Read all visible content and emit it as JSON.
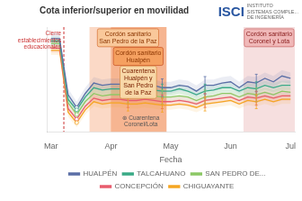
{
  "chart_data": {
    "type": "line",
    "title": "Cota inferior/superior en movilidad",
    "x_label": "Fecha",
    "categories": [
      "Mar",
      null,
      null,
      null,
      null,
      null,
      null,
      "Apr",
      null,
      null,
      null,
      null,
      null,
      null,
      "May",
      null,
      null,
      null,
      null,
      null,
      null,
      "Jun",
      null,
      null,
      null,
      null,
      null,
      null,
      "Jul"
    ],
    "ylim": [
      0.22,
      1.12
    ],
    "yticks": [],
    "tick_labels": "x",
    "grid": false,
    "legend": "bottom",
    "series": [
      {
        "name": "HUALPÉN",
        "color": "#5b6fa6",
        "values": [
          1.02,
          1.02,
          0.54,
          0.43,
          0.55,
          0.64,
          0.62,
          0.63,
          0.63,
          0.62,
          0.62,
          0.62,
          0.62,
          0.6,
          0.6,
          0.62,
          0.61,
          0.57,
          0.62,
          0.62,
          0.64,
          0.65,
          0.6,
          0.65,
          0.64,
          0.68,
          0.65,
          0.7,
          0.68
        ],
        "band": [
          0.05,
          0.05,
          0.05,
          0.05,
          0.05,
          0.05,
          0.05,
          0.05,
          0.05,
          0.05,
          0.05,
          0.05,
          0.05,
          0.05,
          0.05,
          0.05,
          0.05,
          0.05,
          0.05,
          0.05,
          0.05,
          0.05,
          0.05,
          0.05,
          0.05,
          0.05,
          0.05,
          0.05,
          0.05
        ],
        "error_bars": [
          null,
          null,
          null,
          null,
          null,
          null,
          null,
          null,
          null,
          0.075,
          null,
          null,
          null,
          0.075,
          null,
          null,
          null,
          null,
          0.075,
          null,
          null,
          null,
          null,
          null,
          0.075,
          null,
          null,
          null,
          null
        ]
      },
      {
        "name": "TALCAHUANO",
        "color": "#3aaa87",
        "values": [
          1.0,
          1.0,
          0.5,
          0.41,
          0.52,
          0.6,
          0.58,
          0.59,
          0.59,
          0.58,
          0.58,
          0.59,
          0.58,
          0.57,
          0.57,
          0.59,
          0.57,
          0.54,
          0.57,
          0.58,
          0.6,
          0.6,
          0.57,
          0.6,
          0.59,
          0.62,
          0.6,
          0.62,
          0.62
        ],
        "band": [
          0.04,
          0.04,
          0.04,
          0.04,
          0.04,
          0.04,
          0.04,
          0.04,
          0.04,
          0.04,
          0.04,
          0.04,
          0.04,
          0.04,
          0.04,
          0.04,
          0.04,
          0.04,
          0.04,
          0.04,
          0.04,
          0.04,
          0.04,
          0.04,
          0.04,
          0.04,
          0.04,
          0.04,
          0.04
        ],
        "error_bars": [
          null,
          null,
          null,
          null,
          null,
          null,
          null,
          null,
          null,
          0.06,
          null,
          null,
          null,
          0.06,
          null,
          null,
          null,
          null,
          0.06,
          null,
          null,
          null,
          null,
          null,
          0.06,
          null,
          null,
          null,
          null
        ]
      },
      {
        "name": "SAN PEDRO DE...",
        "color": "#8cc865",
        "values": [
          0.98,
          0.98,
          0.47,
          0.37,
          0.48,
          0.55,
          0.53,
          0.54,
          0.54,
          0.53,
          0.53,
          0.54,
          0.53,
          0.52,
          0.52,
          0.53,
          0.52,
          0.49,
          0.52,
          0.53,
          0.55,
          0.55,
          0.52,
          0.55,
          0.54,
          0.56,
          0.54,
          0.57,
          0.56
        ],
        "band": [
          0.04,
          0.04,
          0.04,
          0.04,
          0.04,
          0.04,
          0.04,
          0.04,
          0.04,
          0.04,
          0.04,
          0.04,
          0.04,
          0.04,
          0.04,
          0.04,
          0.04,
          0.04,
          0.04,
          0.04,
          0.04,
          0.04,
          0.04,
          0.04,
          0.04,
          0.04,
          0.04,
          0.04,
          0.04
        ],
        "error_bars": [
          null,
          null,
          null,
          null,
          null,
          null,
          null,
          null,
          null,
          0.06,
          null,
          null,
          null,
          0.06,
          null,
          null,
          null,
          null,
          0.06,
          null,
          null,
          null,
          null,
          null,
          0.06,
          null,
          null,
          null,
          null
        ]
      },
      {
        "name": "CONCEPCIÓN",
        "color": "#e85c6e",
        "values": [
          0.94,
          0.94,
          0.42,
          0.33,
          0.44,
          0.51,
          0.49,
          0.5,
          0.5,
          0.49,
          0.49,
          0.5,
          0.49,
          0.48,
          0.48,
          0.49,
          0.48,
          0.46,
          0.49,
          0.5,
          0.51,
          0.52,
          0.49,
          0.52,
          0.51,
          0.53,
          0.51,
          0.53,
          0.53
        ],
        "band": [
          0.04,
          0.04,
          0.04,
          0.04,
          0.04,
          0.04,
          0.04,
          0.04,
          0.04,
          0.04,
          0.04,
          0.04,
          0.04,
          0.04,
          0.04,
          0.04,
          0.04,
          0.04,
          0.04,
          0.04,
          0.04,
          0.04,
          0.04,
          0.04,
          0.04,
          0.04,
          0.04,
          0.04,
          0.04
        ],
        "error_bars": [
          null,
          null,
          null,
          null,
          null,
          null,
          null,
          null,
          null,
          0.06,
          null,
          null,
          null,
          0.06,
          null,
          null,
          null,
          null,
          0.06,
          null,
          null,
          null,
          null,
          null,
          0.06,
          null,
          null,
          null,
          null
        ]
      },
      {
        "name": "CHIGUAYANTE",
        "color": "#f5a623",
        "values": [
          0.92,
          0.92,
          0.39,
          0.3,
          0.41,
          0.48,
          0.46,
          0.47,
          0.47,
          0.46,
          0.46,
          0.47,
          0.46,
          0.45,
          0.45,
          0.46,
          0.45,
          0.43,
          0.46,
          0.47,
          0.48,
          0.49,
          0.46,
          0.49,
          0.48,
          0.5,
          0.48,
          0.5,
          0.5
        ],
        "band": [
          0.04,
          0.04,
          0.04,
          0.04,
          0.04,
          0.04,
          0.04,
          0.04,
          0.04,
          0.04,
          0.04,
          0.04,
          0.04,
          0.04,
          0.04,
          0.04,
          0.04,
          0.04,
          0.04,
          0.04,
          0.04,
          0.04,
          0.04,
          0.04,
          0.04,
          0.04,
          0.04,
          0.04,
          0.04
        ],
        "error_bars": [
          null,
          null,
          null,
          null,
          null,
          null,
          null,
          null,
          null,
          0.06,
          null,
          null,
          null,
          0.06,
          null,
          null,
          null,
          null,
          0.06,
          null,
          null,
          null,
          null,
          null,
          0.06,
          null,
          null,
          null,
          null
        ]
      }
    ],
    "point_markers": [
      3
    ],
    "spans": [
      {
        "start": 4.5,
        "end": 13.5,
        "color": "#f5a070"
      },
      {
        "start": 7.0,
        "end": 13.5,
        "color": "#f08040"
      },
      {
        "start": 22.5,
        "end": 28.5,
        "color": "#e8b0b0"
      }
    ],
    "vertical_lines": [
      {
        "x": 1.5,
        "color": "#cc3333",
        "line_style": "dashed"
      }
    ],
    "annotations": [
      {
        "text": "Cierre\nestablecimientos\neducacionales",
        "x": 1.2,
        "y": 1.09,
        "align": "right",
        "color": "#cc3333"
      },
      {
        "text": "Cordón sanitario\nSan Pedro de la Paz",
        "x": 9.0,
        "y": 1.09,
        "color": "#8b3500",
        "box_color": "#f9c89a",
        "border_color": "#d06020"
      },
      {
        "text": "Cordón sanitario\nHualpén",
        "x": 10.2,
        "y": 0.93,
        "color": "#8b3500",
        "box_color": "#f5a060",
        "border_color": "#c04010"
      },
      {
        "text": "Cuarentena\nHualpén y\nSan Pedro\nde la Paz",
        "x": 10.2,
        "y": 0.77,
        "color": "#7a2000",
        "box_color": "#f8d8a8",
        "border_color": "#d08030"
      },
      {
        "text": "⊛ Cuarentena\nCoronel/Lota",
        "x": 10.5,
        "y": 0.37,
        "color": "#555555"
      },
      {
        "text": "Cordón sanitario\nCoronel y Lota",
        "x": 25.5,
        "y": 1.09,
        "color": "#8b2020",
        "box_color": "#f0b8b8",
        "border_color": "#c05050"
      }
    ],
    "logo": {
      "text": "ISCI",
      "color": "#2855a0",
      "lines": [
        "INSTITUTO",
        "SISTEMAS COMPLE...",
        "DE INGENIERÍA"
      ]
    }
  }
}
